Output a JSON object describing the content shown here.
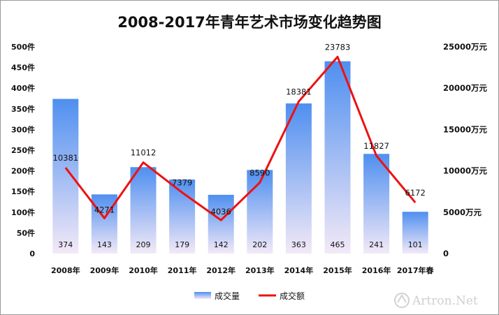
{
  "chart_data": {
    "type": "bar",
    "title": "2008-2017年青年艺术市场变化趋势图",
    "categories": [
      "2008年",
      "2009年",
      "2010年",
      "2011年",
      "2012年",
      "2013年",
      "2014年",
      "2015年",
      "2016年",
      "2017年春"
    ],
    "series": [
      {
        "name": "成交量",
        "type": "bar",
        "axis": "left",
        "values": [
          374,
          143,
          209,
          179,
          142,
          202,
          363,
          465,
          241,
          101
        ]
      },
      {
        "name": "成交额",
        "type": "line",
        "axis": "right",
        "values": [
          10381,
          4271,
          11012,
          7379,
          4036,
          8590,
          18381,
          23783,
          11827,
          6172
        ]
      }
    ],
    "y_left": {
      "ylim": [
        0,
        500
      ],
      "ticks": [
        0,
        50,
        100,
        150,
        200,
        250,
        300,
        350,
        400,
        450,
        500
      ],
      "tick_labels": [
        "0",
        "50件",
        "100件",
        "150件",
        "200件",
        "250件",
        "300件",
        "350件",
        "400件",
        "450件",
        "500件"
      ]
    },
    "y_right": {
      "ylim": [
        0,
        25000
      ],
      "ticks": [
        0,
        5000,
        10000,
        15000,
        20000,
        25000
      ],
      "tick_labels": [
        "0",
        "5000万元",
        "10000万元",
        "15000万元",
        "20000万元",
        "25000万元"
      ]
    },
    "legend_position": "bottom",
    "grid": false,
    "colors": {
      "bar_top": "#4f8ff0",
      "bar_bottom": "#f3e9f7",
      "line": "#ee1111"
    }
  },
  "watermark": {
    "text": "Artron.Net"
  }
}
